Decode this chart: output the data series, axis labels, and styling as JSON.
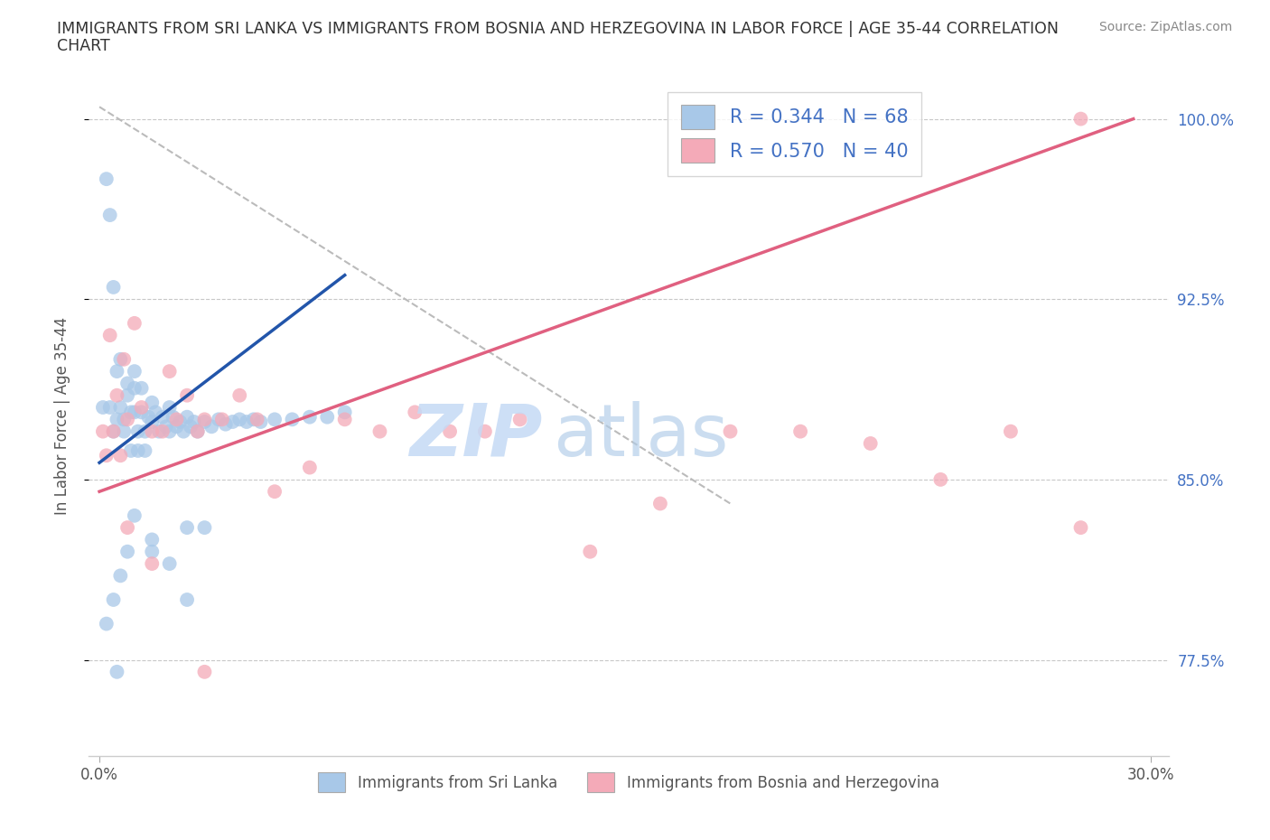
{
  "title_line1": "IMMIGRANTS FROM SRI LANKA VS IMMIGRANTS FROM BOSNIA AND HERZEGOVINA IN LABOR FORCE | AGE 35-44 CORRELATION",
  "title_line2": "CHART",
  "source_text": "Source: ZipAtlas.com",
  "ylabel": "In Labor Force | Age 35-44",
  "xlim": [
    -0.003,
    0.305
  ],
  "ylim": [
    0.735,
    1.018
  ],
  "x_ticks": [
    0.0,
    0.3
  ],
  "x_tick_labels": [
    "0.0%",
    "30.0%"
  ],
  "y_tick_vals": [
    0.775,
    0.85,
    0.925,
    1.0
  ],
  "y_tick_labels": [
    "77.5%",
    "85.0%",
    "92.5%",
    "100.0%"
  ],
  "grid_color": "#c8c8c8",
  "sri_lanka_color": "#a8c8e8",
  "bosnia_color": "#f4aab8",
  "sri_lanka_line_color": "#2255aa",
  "bosnia_line_color": "#e06080",
  "ref_line_color": "#bbbbbb",
  "R_sri_lanka": 0.344,
  "N_sri_lanka": 68,
  "R_bosnia": 0.57,
  "N_bosnia": 40,
  "sri_lanka_label": "Immigrants from Sri Lanka",
  "bosnia_label": "Immigrants from Bosnia and Herzegovina",
  "legend_R_color": "#4472c4",
  "right_axis_color": "#4472c4",
  "title_color": "#333333",
  "source_color": "#888888",
  "sl_x": [
    0.001,
    0.002,
    0.003,
    0.003,
    0.004,
    0.004,
    0.005,
    0.005,
    0.006,
    0.006,
    0.007,
    0.007,
    0.008,
    0.008,
    0.009,
    0.009,
    0.01,
    0.01,
    0.01,
    0.011,
    0.011,
    0.012,
    0.012,
    0.013,
    0.013,
    0.014,
    0.015,
    0.015,
    0.016,
    0.017,
    0.018,
    0.019,
    0.02,
    0.02,
    0.021,
    0.022,
    0.023,
    0.024,
    0.025,
    0.026,
    0.027,
    0.028,
    0.03,
    0.032,
    0.034,
    0.036,
    0.038,
    0.04,
    0.042,
    0.044,
    0.046,
    0.05,
    0.055,
    0.06,
    0.065,
    0.07,
    0.005,
    0.01,
    0.015,
    0.02,
    0.025,
    0.03,
    0.002,
    0.004,
    0.006,
    0.008,
    0.015,
    0.025
  ],
  "sl_y": [
    0.88,
    0.975,
    0.88,
    0.96,
    0.93,
    0.87,
    0.895,
    0.875,
    0.9,
    0.88,
    0.875,
    0.87,
    0.89,
    0.885,
    0.878,
    0.862,
    0.895,
    0.888,
    0.878,
    0.87,
    0.862,
    0.888,
    0.878,
    0.87,
    0.862,
    0.876,
    0.882,
    0.874,
    0.878,
    0.87,
    0.876,
    0.872,
    0.88,
    0.87,
    0.876,
    0.872,
    0.874,
    0.87,
    0.876,
    0.872,
    0.874,
    0.87,
    0.874,
    0.872,
    0.875,
    0.873,
    0.874,
    0.875,
    0.874,
    0.875,
    0.874,
    0.875,
    0.875,
    0.876,
    0.876,
    0.878,
    0.77,
    0.835,
    0.82,
    0.815,
    0.8,
    0.83,
    0.79,
    0.8,
    0.81,
    0.82,
    0.825,
    0.83
  ],
  "bo_x": [
    0.001,
    0.002,
    0.003,
    0.004,
    0.005,
    0.006,
    0.007,
    0.008,
    0.01,
    0.012,
    0.015,
    0.018,
    0.02,
    0.022,
    0.025,
    0.028,
    0.03,
    0.035,
    0.04,
    0.045,
    0.05,
    0.06,
    0.07,
    0.08,
    0.09,
    0.1,
    0.11,
    0.12,
    0.14,
    0.16,
    0.18,
    0.2,
    0.22,
    0.24,
    0.26,
    0.28,
    0.008,
    0.015,
    0.03,
    0.28
  ],
  "bo_y": [
    0.87,
    0.86,
    0.91,
    0.87,
    0.885,
    0.86,
    0.9,
    0.875,
    0.915,
    0.88,
    0.87,
    0.87,
    0.895,
    0.875,
    0.885,
    0.87,
    0.875,
    0.875,
    0.885,
    0.875,
    0.845,
    0.855,
    0.875,
    0.87,
    0.878,
    0.87,
    0.87,
    0.875,
    0.82,
    0.84,
    0.87,
    0.87,
    0.865,
    0.85,
    0.87,
    1.0,
    0.83,
    0.815,
    0.77,
    0.83
  ],
  "sl_line_x": [
    0.0,
    0.07
  ],
  "sl_line_y": [
    0.857,
    0.935
  ],
  "bo_line_x": [
    0.0,
    0.295
  ],
  "bo_line_y": [
    0.845,
    1.0
  ],
  "ref_line_x": [
    0.0,
    0.18
  ],
  "ref_line_y": [
    1.005,
    0.84
  ]
}
